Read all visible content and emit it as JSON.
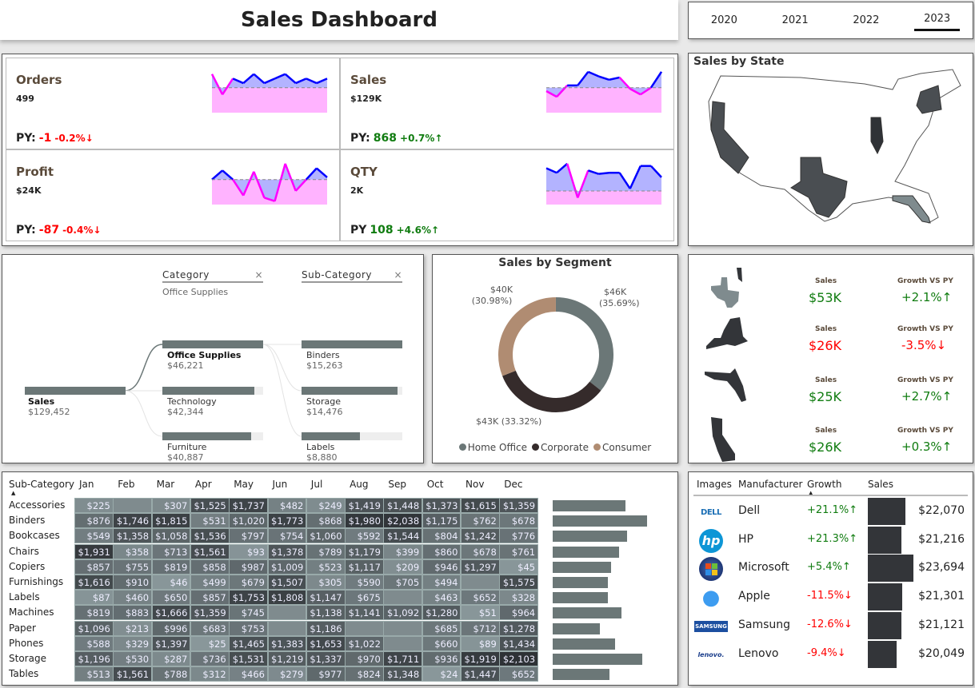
{
  "title": "Sales Dashboard",
  "years": {
    "items": [
      "2020",
      "2021",
      "2022",
      "2023"
    ],
    "selected": "2023"
  },
  "kpis": [
    {
      "name": "Orders",
      "value": "499",
      "py_label": "PY:",
      "py_delta": "-1",
      "py_pct": "-0.2%↓",
      "trend": "down",
      "spark": [
        48,
        30,
        44,
        40,
        48,
        40,
        44,
        48,
        40,
        44,
        40,
        44
      ],
      "baseline": 36
    },
    {
      "name": "Sales",
      "value": "$129K",
      "py_label": "PY:",
      "py_delta": "868",
      "py_pct": "+0.7%↑",
      "trend": "up",
      "spark": [
        33,
        28,
        38,
        38,
        50,
        46,
        43,
        45,
        35,
        30,
        36,
        50
      ],
      "baseline": 36
    },
    {
      "name": "Profit",
      "value": "$24K",
      "py_label": "PY:",
      "py_delta": "-87",
      "py_pct": "-0.4%↓",
      "trend": "down",
      "spark": [
        36,
        44,
        36,
        22,
        43,
        20,
        17,
        50,
        26,
        36,
        46,
        38
      ],
      "baseline": 36
    },
    {
      "name": "QTY",
      "value": "2K",
      "py_label": "PY",
      "py_delta": "108",
      "py_pct": "+4.6%↑",
      "trend": "up",
      "spark": [
        46,
        42,
        50,
        20,
        44,
        41,
        42,
        42,
        28,
        48,
        48,
        38
      ],
      "baseline": 26
    }
  ],
  "colors": {
    "spark_line": "#0000ff",
    "spark_below": "#ff00ff",
    "up": "#107c10",
    "down": "#ff0000",
    "bar": "#6b7777",
    "dark": "#333539"
  },
  "map": {
    "title": "Sales by State"
  },
  "decomp": {
    "headers": [
      {
        "label": "Category",
        "filter": "Office Supplies"
      },
      {
        "label": "Sub-Category"
      }
    ],
    "root": {
      "label": "Sales",
      "value": "$129,452",
      "amount": 129452
    },
    "level1": [
      {
        "label": "Office Supplies",
        "value": "$46,221",
        "amount": 46221
      },
      {
        "label": "Technology",
        "value": "$42,344",
        "amount": 42344
      },
      {
        "label": "Furniture",
        "value": "$40,887",
        "amount": 40887
      }
    ],
    "level2": [
      {
        "label": "Binders",
        "value": "$15,263",
        "amount": 15263
      },
      {
        "label": "Storage",
        "value": "$14,476",
        "amount": 14476
      },
      {
        "label": "Labels",
        "value": "$8,880",
        "amount": 8880
      }
    ]
  },
  "segment": {
    "title": "Sales by Segment",
    "slices": [
      {
        "name": "Home Office",
        "label": "$46K",
        "pct_label": "(35.69%)",
        "pct": 35.69,
        "color": "#6b7777"
      },
      {
        "name": "Corporate",
        "label": "$43K",
        "pct_label": "(33.32%)",
        "pct": 33.32,
        "color": "#352b2b"
      },
      {
        "name": "Consumer",
        "label": "$40K",
        "pct_label": "(30.98%)",
        "pct": 30.98,
        "color": "#b08c72"
      }
    ]
  },
  "states": {
    "sales_label": "Sales",
    "growth_label": "Growth VS PY",
    "rows": [
      {
        "state": "Texas",
        "sales": "$53K",
        "growth": "+2.1%↑",
        "trend": "up"
      },
      {
        "state": "New York",
        "sales": "$26K",
        "growth": "-3.5%↓",
        "trend": "down"
      },
      {
        "state": "Florida",
        "sales": "$25K",
        "growth": "+2.7%↑",
        "trend": "up"
      },
      {
        "state": "California",
        "sales": "$26K",
        "growth": "+0.3%↑",
        "trend": "up"
      }
    ]
  },
  "heatmap": {
    "row_header": "Sub-Category",
    "months": [
      "Jan",
      "Feb",
      "Mar",
      "Apr",
      "May",
      "Jun",
      "Jul",
      "Aug",
      "Sep",
      "Oct",
      "Nov",
      "Dec"
    ],
    "rows": [
      {
        "name": "Accessories",
        "values": [
          225,
          null,
          307,
          1525,
          1737,
          482,
          249,
          1419,
          1448,
          1373,
          1615,
          1359
        ]
      },
      {
        "name": "Binders",
        "values": [
          876,
          1746,
          1815,
          531,
          1020,
          1773,
          868,
          1980,
          2038,
          1175,
          762,
          678
        ]
      },
      {
        "name": "Bookcases",
        "values": [
          549,
          1358,
          1058,
          1536,
          797,
          754,
          1060,
          592,
          1544,
          804,
          1242,
          776
        ]
      },
      {
        "name": "Chairs",
        "values": [
          1931,
          358,
          713,
          1561,
          93,
          1378,
          789,
          1179,
          399,
          860,
          678,
          761
        ]
      },
      {
        "name": "Copiers",
        "values": [
          857,
          755,
          819,
          858,
          987,
          1009,
          523,
          1117,
          209,
          946,
          1297,
          45
        ]
      },
      {
        "name": "Furnishings",
        "values": [
          1616,
          910,
          46,
          499,
          679,
          1507,
          305,
          590,
          705,
          494,
          null,
          1575
        ]
      },
      {
        "name": "Labels",
        "values": [
          87,
          460,
          650,
          857,
          1753,
          1808,
          1147,
          675,
          null,
          463,
          652,
          328
        ]
      },
      {
        "name": "Machines",
        "values": [
          819,
          883,
          1666,
          1359,
          745,
          null,
          1138,
          1141,
          1092,
          1280,
          51,
          964
        ]
      },
      {
        "name": "Paper",
        "values": [
          1096,
          213,
          996,
          683,
          753,
          null,
          1186,
          null,
          null,
          685,
          712,
          1278
        ]
      },
      {
        "name": "Phones",
        "values": [
          588,
          329,
          1397,
          25,
          1465,
          1383,
          1653,
          1022,
          null,
          660,
          89,
          1434
        ]
      },
      {
        "name": "Storage",
        "values": [
          1196,
          530,
          287,
          736,
          1531,
          1219,
          1337,
          970,
          1711,
          936,
          1919,
          2103
        ]
      },
      {
        "name": "Tables",
        "values": [
          513,
          1561,
          788,
          312,
          466,
          279,
          977,
          824,
          1348,
          24,
          1447,
          652
        ]
      }
    ]
  },
  "manufacturers": {
    "headers": [
      "Images",
      "Manufacturer",
      "Growth",
      "Sales"
    ],
    "rows": [
      {
        "name": "Dell",
        "logo": "DELL",
        "growth": "+21.1%↑",
        "trend": "up",
        "sales": "$22,070",
        "amount": 22070
      },
      {
        "name": "HP",
        "logo": "hp",
        "growth": "+21.3%↑",
        "trend": "up",
        "sales": "$21,216",
        "amount": 21216
      },
      {
        "name": "Microsoft",
        "logo": "windows",
        "growth": "+5.4%↑",
        "trend": "up",
        "sales": "$23,694",
        "amount": 23694
      },
      {
        "name": "Apple",
        "logo": "apple",
        "growth": "-11.5%↓",
        "trend": "down",
        "sales": "$21,301",
        "amount": 21301
      },
      {
        "name": "Samsung",
        "logo": "SAMSUNG",
        "growth": "-12.6%↓",
        "trend": "down",
        "sales": "$21,121",
        "amount": 21121
      },
      {
        "name": "Lenovo",
        "logo": "lenovo",
        "growth": "-9.4%↓",
        "trend": "down",
        "sales": "$20,049",
        "amount": 20049
      }
    ]
  }
}
